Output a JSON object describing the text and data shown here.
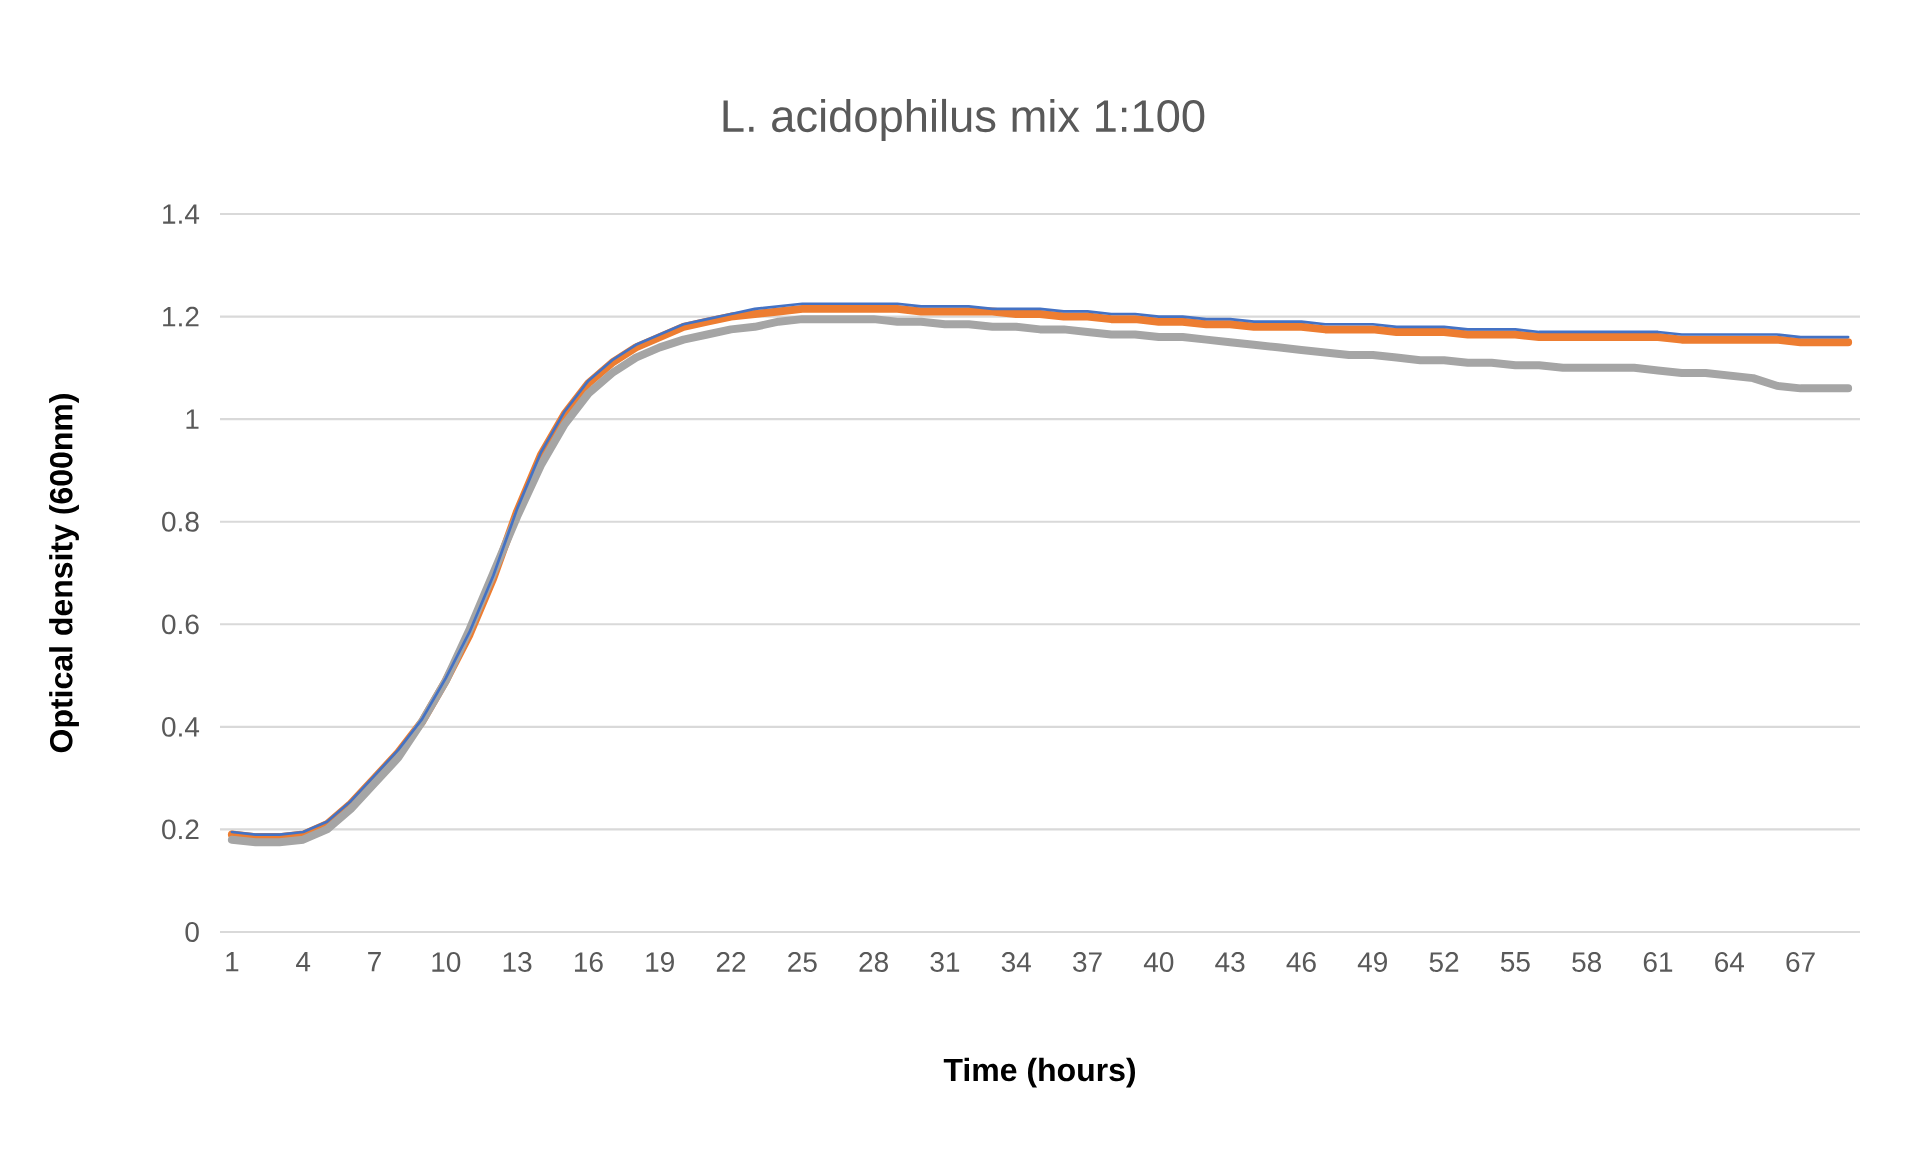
{
  "chart_data": {
    "type": "line",
    "title": "L. acidophilus mix 1:100",
    "xlabel": "Time (hours)",
    "ylabel": "Optical density (600nm)",
    "categories": [
      "1",
      null,
      null,
      "4",
      null,
      null,
      "7",
      null,
      null,
      "10",
      null,
      null,
      "13",
      null,
      null,
      "16",
      null,
      null,
      "19",
      null,
      null,
      "22",
      null,
      null,
      "25",
      null,
      null,
      "28",
      null,
      null,
      "31",
      null,
      null,
      "34",
      null,
      null,
      "37",
      null,
      null,
      "40",
      null,
      null,
      "43",
      null,
      null,
      "46",
      null,
      null,
      "49",
      null,
      null,
      "52",
      null,
      null,
      "55",
      null,
      null,
      "58",
      null,
      null,
      "61",
      null,
      null,
      "64",
      null,
      null,
      "67",
      null,
      null
    ],
    "series": [
      {
        "color": "#4472c4",
        "values": [
          0.195,
          0.19,
          0.19,
          0.195,
          0.215,
          0.255,
          0.305,
          0.355,
          0.415,
          0.495,
          0.585,
          0.695,
          0.825,
          0.935,
          1.015,
          1.075,
          1.115,
          1.145,
          1.165,
          1.185,
          1.195,
          1.205,
          1.215,
          1.22,
          1.225,
          1.225,
          1.225,
          1.225,
          1.225,
          1.22,
          1.22,
          1.22,
          1.215,
          1.215,
          1.215,
          1.21,
          1.21,
          1.205,
          1.205,
          1.2,
          1.2,
          1.195,
          1.195,
          1.19,
          1.19,
          1.19,
          1.185,
          1.185,
          1.185,
          1.18,
          1.18,
          1.18,
          1.175,
          1.175,
          1.175,
          1.17,
          1.17,
          1.17,
          1.17,
          1.17,
          1.17,
          1.165,
          1.165,
          1.165,
          1.165,
          1.165,
          1.16,
          1.16,
          1.16
        ]
      },
      {
        "color": "#ed7d31",
        "values": [
          0.19,
          0.185,
          0.185,
          0.19,
          0.21,
          0.25,
          0.3,
          0.35,
          0.41,
          0.49,
          0.58,
          0.69,
          0.82,
          0.93,
          1.01,
          1.07,
          1.11,
          1.14,
          1.16,
          1.18,
          1.19,
          1.2,
          1.205,
          1.21,
          1.215,
          1.215,
          1.215,
          1.215,
          1.215,
          1.21,
          1.21,
          1.21,
          1.21,
          1.205,
          1.205,
          1.2,
          1.2,
          1.195,
          1.195,
          1.19,
          1.19,
          1.185,
          1.185,
          1.18,
          1.18,
          1.18,
          1.175,
          1.175,
          1.175,
          1.17,
          1.17,
          1.17,
          1.165,
          1.165,
          1.165,
          1.16,
          1.16,
          1.16,
          1.16,
          1.16,
          1.16,
          1.155,
          1.155,
          1.155,
          1.155,
          1.155,
          1.15,
          1.15,
          1.15
        ]
      },
      {
        "color": "#a5a5a5",
        "values": [
          0.18,
          0.175,
          0.175,
          0.18,
          0.2,
          0.24,
          0.29,
          0.34,
          0.41,
          0.49,
          0.59,
          0.7,
          0.81,
          0.91,
          0.99,
          1.05,
          1.09,
          1.12,
          1.14,
          1.155,
          1.165,
          1.175,
          1.18,
          1.19,
          1.195,
          1.195,
          1.195,
          1.195,
          1.19,
          1.19,
          1.185,
          1.185,
          1.18,
          1.18,
          1.175,
          1.175,
          1.17,
          1.165,
          1.165,
          1.16,
          1.16,
          1.155,
          1.15,
          1.145,
          1.14,
          1.135,
          1.13,
          1.125,
          1.125,
          1.12,
          1.115,
          1.115,
          1.11,
          1.11,
          1.105,
          1.105,
          1.1,
          1.1,
          1.1,
          1.1,
          1.095,
          1.09,
          1.09,
          1.085,
          1.08,
          1.065,
          1.06,
          1.06,
          1.06
        ]
      }
    ],
    "ylim": [
      0,
      1.4
    ],
    "yticks": [
      0,
      0.2,
      0.4,
      0.6,
      0.8,
      1,
      1.2,
      1.4
    ],
    "grid": "y"
  }
}
